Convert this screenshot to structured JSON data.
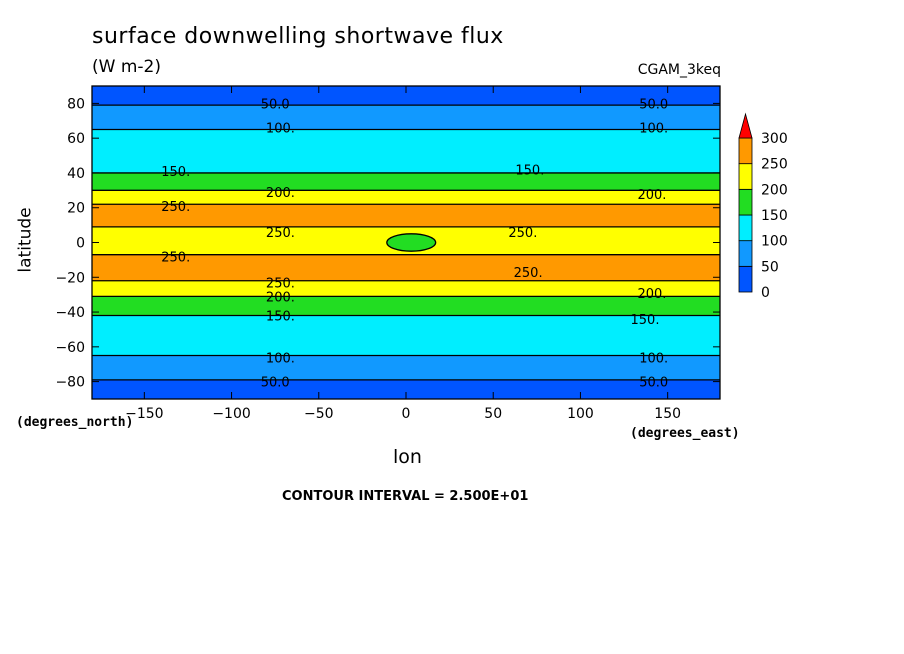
{
  "chart_data": {
    "type": "heatmap",
    "title": "surface downwelling shortwave flux",
    "units": "(W m-2)",
    "dataset": "CGAM_3keq",
    "xlabel": "lon",
    "ylabel": "latitude",
    "x_units": "(degrees_east)",
    "y_units": "(degrees_north)",
    "xlim": [
      -180,
      180
    ],
    "ylim": [
      -90,
      90
    ],
    "x_ticks": [
      -150,
      -100,
      -50,
      0,
      50,
      100,
      150
    ],
    "y_ticks": [
      80,
      60,
      40,
      20,
      0,
      -20,
      -40,
      -60,
      -80
    ],
    "colorbar": {
      "levels": [
        0,
        50,
        100,
        150,
        200,
        250,
        300
      ],
      "colors": [
        "#0055ff",
        "#1199ff",
        "#00eeff",
        "#22dd22",
        "#ffff00",
        "#ff9900"
      ],
      "overflow_color": "#ff0000"
    },
    "contour_interval": "CONTOUR INTERVAL = 2.500E+01",
    "zonal_bands": [
      {
        "lat": [
          79,
          90
        ],
        "range": "0-50"
      },
      {
        "lat": [
          65,
          79
        ],
        "range": "50-100"
      },
      {
        "lat": [
          40,
          65
        ],
        "range": "100-150"
      },
      {
        "lat": [
          30,
          40
        ],
        "range": "150-200"
      },
      {
        "lat": [
          22,
          30
        ],
        "range": "200-250"
      },
      {
        "lat": [
          9,
          22
        ],
        "range": "250-300"
      },
      {
        "lat": [
          -7,
          9
        ],
        "range": "200-250"
      },
      {
        "lat": [
          -22,
          -7
        ],
        "range": "250-300"
      },
      {
        "lat": [
          -31,
          -22
        ],
        "range": "200-250"
      },
      {
        "lat": [
          -42,
          -31
        ],
        "range": "150-200"
      },
      {
        "lat": [
          -65,
          -42
        ],
        "range": "100-150"
      },
      {
        "lat": [
          -79,
          -65
        ],
        "range": "50-100"
      },
      {
        "lat": [
          -90,
          -79
        ],
        "range": "0-50"
      }
    ],
    "contour_labels": [
      {
        "text": "50.0",
        "lon": -75,
        "lat": 80
      },
      {
        "text": "50.0",
        "lon": 142,
        "lat": 80
      },
      {
        "text": "100.",
        "lon": -72,
        "lat": 66
      },
      {
        "text": "100.",
        "lon": 142,
        "lat": 66
      },
      {
        "text": "150.",
        "lon": -132,
        "lat": 41
      },
      {
        "text": "150.",
        "lon": 71,
        "lat": 42
      },
      {
        "text": "200.",
        "lon": -72,
        "lat": 29
      },
      {
        "text": "200.",
        "lon": 141,
        "lat": 28
      },
      {
        "text": "250.",
        "lon": -132,
        "lat": 21
      },
      {
        "text": "250.",
        "lon": -72,
        "lat": 6
      },
      {
        "text": "250.",
        "lon": 67,
        "lat": 6
      },
      {
        "text": "250.",
        "lon": -132,
        "lat": -8
      },
      {
        "text": "250.",
        "lon": -72,
        "lat": -23
      },
      {
        "text": "250.",
        "lon": 70,
        "lat": -17
      },
      {
        "text": "200.",
        "lon": -72,
        "lat": -31
      },
      {
        "text": "200.",
        "lon": 141,
        "lat": -29
      },
      {
        "text": "150.",
        "lon": -72,
        "lat": -42
      },
      {
        "text": "150.",
        "lon": 137,
        "lat": -44
      },
      {
        "text": "100.",
        "lon": -72,
        "lat": -66
      },
      {
        "text": "100.",
        "lon": 142,
        "lat": -66
      },
      {
        "text": "50.0",
        "lon": -75,
        "lat": -80
      },
      {
        "text": "50.0",
        "lon": 142,
        "lat": -80
      }
    ]
  }
}
